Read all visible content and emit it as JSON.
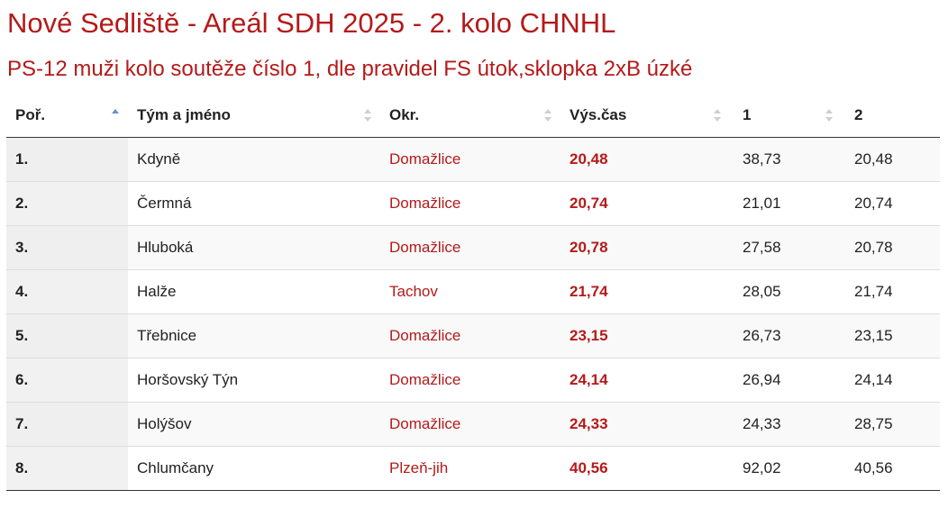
{
  "header": {
    "title": "Nové Sedliště - Areál SDH 2025 - 2. kolo CHNHL",
    "subtitle": "PS-12 muži kolo soutěže číslo 1, dle pravidel FS útok,sklopka 2xB úzké"
  },
  "table": {
    "columns": [
      "Poř.",
      "Tým a jméno",
      "Okr.",
      "Výs.čas",
      "1",
      "2"
    ],
    "sort_column": "Poř.",
    "sort_direction": "ascending",
    "rows": [
      {
        "rank": "1.",
        "team": "Kdyně",
        "district": "Domažlice",
        "result": "20,48",
        "run1": "38,73",
        "run2": "20,48"
      },
      {
        "rank": "2.",
        "team": "Čermná",
        "district": "Domažlice",
        "result": "20,74",
        "run1": "21,01",
        "run2": "20,74"
      },
      {
        "rank": "3.",
        "team": "Hluboká",
        "district": "Domažlice",
        "result": "20,78",
        "run1": "27,58",
        "run2": "20,78"
      },
      {
        "rank": "4.",
        "team": "Halže",
        "district": "Tachov",
        "result": "21,74",
        "run1": "28,05",
        "run2": "21,74"
      },
      {
        "rank": "5.",
        "team": "Třebnice",
        "district": "Domažlice",
        "result": "23,15",
        "run1": "26,73",
        "run2": "23,15"
      },
      {
        "rank": "6.",
        "team": "Horšovský Týn",
        "district": "Domažlice",
        "result": "24,14",
        "run1": "26,94",
        "run2": "24,14"
      },
      {
        "rank": "7.",
        "team": "Holýšov",
        "district": "Domažlice",
        "result": "24,33",
        "run1": "24,33",
        "run2": "28,75"
      },
      {
        "rank": "8.",
        "team": "Chlumčany",
        "district": "Plzeň-jih",
        "result": "40,56",
        "run1": "92,02",
        "run2": "40,56"
      }
    ]
  },
  "colors": {
    "accent": "#b41a1a",
    "sort_active": "#6b8fd6",
    "sort_inactive": "#cfcfcf"
  }
}
